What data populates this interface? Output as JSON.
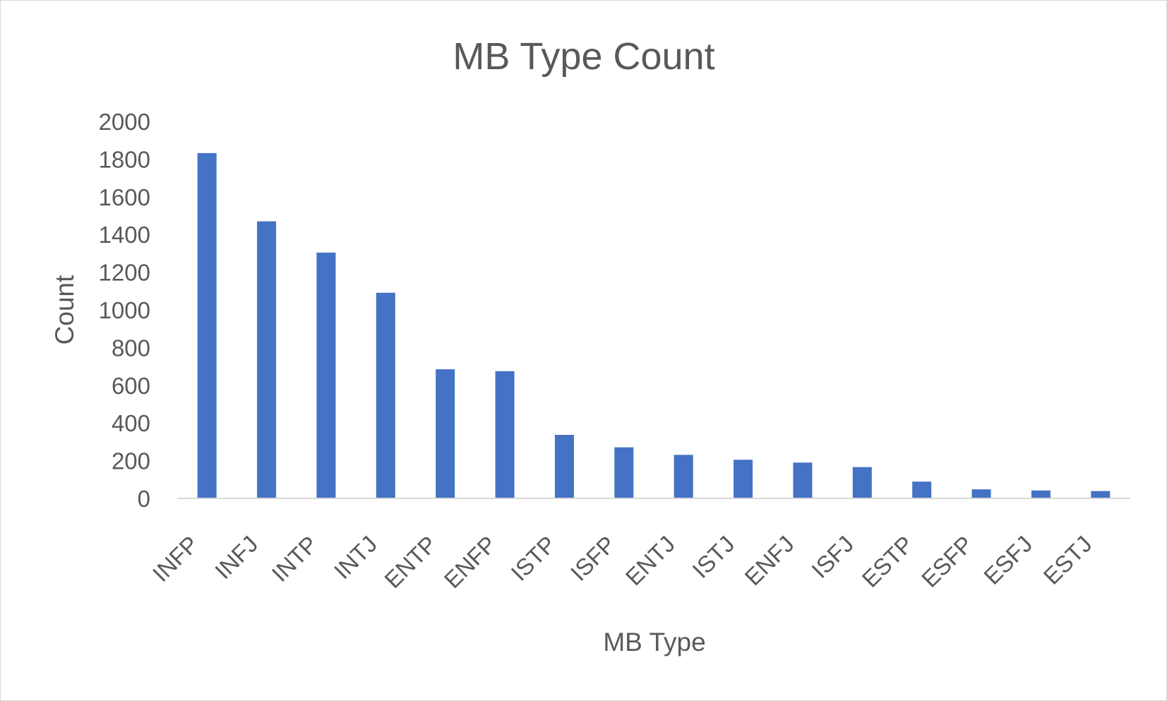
{
  "chart_data": {
    "type": "bar",
    "title": "MB Type Count",
    "xlabel": "MB Type",
    "ylabel": "Count",
    "categories": [
      "INFP",
      "INFJ",
      "INTP",
      "INTJ",
      "ENTP",
      "ENFP",
      "ISTP",
      "ISFP",
      "ENTJ",
      "ISTJ",
      "ENFJ",
      "ISFJ",
      "ESTP",
      "ESFP",
      "ESFJ",
      "ESTJ"
    ],
    "values": [
      1832,
      1470,
      1304,
      1091,
      685,
      675,
      337,
      271,
      231,
      205,
      190,
      166,
      89,
      48,
      42,
      39
    ],
    "ylim": [
      0,
      2000
    ],
    "yticks": [
      "0",
      "200",
      "400",
      "600",
      "800",
      "1000",
      "1200",
      "1400",
      "1600",
      "1800",
      "2000"
    ],
    "grid": false,
    "legend": "none",
    "colors": {
      "bar": "#4472C4",
      "text": "#595959",
      "axis": "#d9d9d9",
      "border": "#d9d9d9"
    }
  }
}
